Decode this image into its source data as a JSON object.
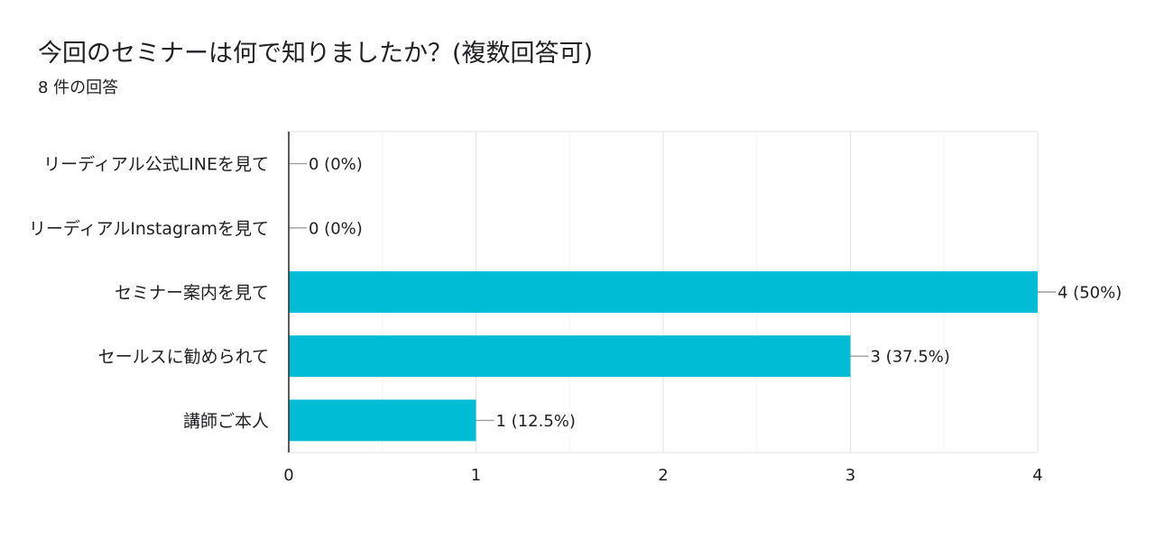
{
  "header": {
    "title": "今回のセミナーは何で知りましたか？(複数回答可)",
    "subtitle": "8 件の回答"
  },
  "chart_data": {
    "type": "bar",
    "orientation": "horizontal",
    "title": "今回のセミナーは何で知りましたか？(複数回答可)",
    "subtitle": "8 件の回答",
    "categories": [
      "リーディアル公式LINEを見て",
      "リーディアルInstagramを見て",
      "セミナー案内を見て",
      "セールスに勧められて",
      "講師ご本人"
    ],
    "values": [
      0,
      0,
      4,
      3,
      1
    ],
    "data_labels": [
      "0 (0%)",
      "0 (0%)",
      "4 (50%)",
      "3 (37.5%)",
      "1 (12.5%)"
    ],
    "xlim": [
      0,
      4
    ],
    "xticks": [
      0,
      1,
      2,
      3,
      4
    ],
    "grid": true,
    "bar_color": "#00bcd4",
    "legend": "none"
  }
}
